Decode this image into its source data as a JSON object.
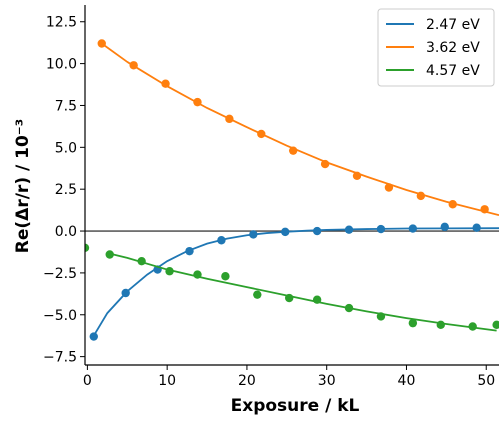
{
  "chart_data": {
    "type": "line",
    "title": "",
    "xlabel": "Exposure / kL",
    "ylabel": "Re(Δr/r) / 10⁻³",
    "xlim": [
      -0.3,
      51.6
    ],
    "ylim": [
      -8.0,
      13.5
    ],
    "xticks": [
      0,
      10,
      20,
      30,
      40,
      50
    ],
    "xtick_labels": [
      "0",
      "10",
      "20",
      "30",
      "40",
      "50"
    ],
    "yticks": [
      -7.5,
      -5.0,
      -2.5,
      0.0,
      2.5,
      5.0,
      7.5,
      10.0,
      12.5
    ],
    "ytick_labels": [
      "−7.5",
      "−5.0",
      "−2.5",
      "0.0",
      "2.5",
      "5.0",
      "7.5",
      "10.0",
      "12.5"
    ],
    "grid": false,
    "reference_line": {
      "y": 0,
      "color": "#404040"
    },
    "legend": {
      "position": "top-right"
    },
    "series": [
      {
        "name": "2.47 eV",
        "color": "#1f77b4",
        "points": {
          "x": [
            0.8,
            4.8,
            8.8,
            12.8,
            16.8,
            20.8,
            24.8,
            28.8,
            32.8,
            36.8,
            40.8,
            44.8,
            48.8
          ],
          "y": [
            -6.3,
            -3.7,
            -2.3,
            -1.2,
            -0.55,
            -0.2,
            -0.05,
            0.0,
            0.08,
            0.12,
            0.15,
            0.25,
            0.2
          ]
        },
        "fit": {
          "x": [
            0.8,
            2.5,
            5.0,
            7.5,
            10.0,
            12.5,
            15.0,
            17.5,
            20.0,
            22.5,
            25.0,
            27.5,
            30.0,
            35.0,
            40.0,
            45.0,
            51.6
          ],
          "y": [
            -6.25,
            -4.9,
            -3.6,
            -2.6,
            -1.8,
            -1.2,
            -0.75,
            -0.45,
            -0.25,
            -0.12,
            -0.04,
            0.02,
            0.07,
            0.12,
            0.15,
            0.16,
            0.17
          ]
        }
      },
      {
        "name": "3.62 eV",
        "color": "#ff7f0e",
        "points": {
          "x": [
            1.8,
            5.8,
            9.8,
            13.8,
            17.8,
            21.8,
            25.8,
            29.8,
            33.8,
            37.8,
            41.8,
            45.8,
            49.8
          ],
          "y": [
            11.2,
            9.9,
            8.8,
            7.7,
            6.7,
            5.8,
            4.8,
            4.0,
            3.3,
            2.6,
            2.1,
            1.6,
            1.3
          ]
        },
        "fit": {
          "x": [
            1.8,
            5.0,
            10.0,
            15.0,
            20.0,
            25.0,
            30.0,
            35.0,
            40.0,
            45.0,
            51.6
          ],
          "y": [
            11.2,
            10.1,
            8.65,
            7.35,
            6.2,
            5.1,
            4.1,
            3.25,
            2.45,
            1.75,
            0.95
          ]
        }
      },
      {
        "name": "4.57 eV",
        "color": "#2ca02c",
        "points": {
          "x": [
            -0.3,
            2.8,
            6.8,
            10.3,
            13.8,
            17.3,
            21.3,
            25.3,
            28.8,
            32.8,
            36.8,
            40.8,
            44.3,
            48.3,
            51.3
          ],
          "y": [
            -1.0,
            -1.4,
            -1.8,
            -2.4,
            -2.6,
            -2.7,
            -3.8,
            -4.0,
            -4.1,
            -4.6,
            -5.1,
            -5.5,
            -5.6,
            -5.7,
            -5.6
          ]
        },
        "fit": {
          "x": [
            2.8,
            5.0,
            10.0,
            15.0,
            20.0,
            25.0,
            30.0,
            35.0,
            40.0,
            45.0,
            51.3
          ],
          "y": [
            -1.35,
            -1.6,
            -2.3,
            -2.85,
            -3.35,
            -3.85,
            -4.35,
            -4.8,
            -5.2,
            -5.55,
            -5.95
          ]
        }
      }
    ]
  }
}
